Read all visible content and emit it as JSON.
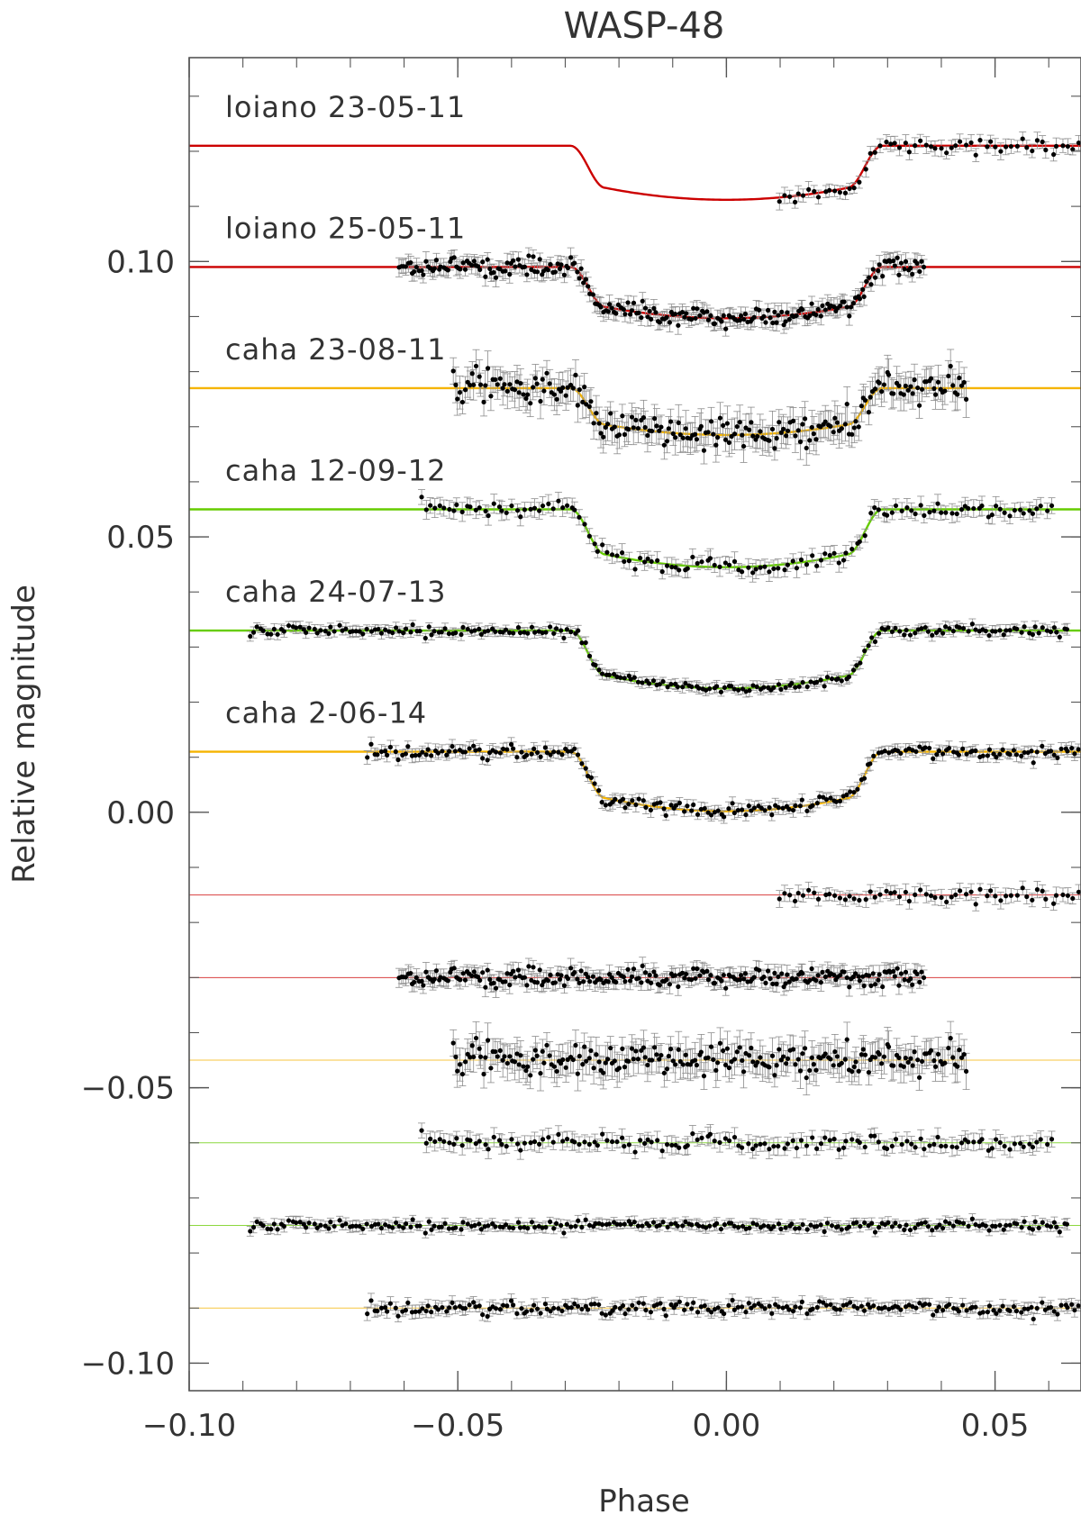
{
  "chart_data": {
    "type": "scatter",
    "title": "WASP-48",
    "xlabel": "Phase",
    "ylabel": "Relative magnitude",
    "xlim": [
      -0.1,
      0.066
    ],
    "ylim": [
      -0.105,
      0.137
    ],
    "reversed_y": false,
    "grid": false,
    "x_ticks": [
      -0.1,
      -0.05,
      0.0,
      0.05
    ],
    "x_tick_labels": [
      "−0.10",
      "−0.05",
      "0.00",
      "0.05"
    ],
    "y_ticks": [
      0.1,
      0.05,
      0.0,
      -0.05,
      -0.1
    ],
    "y_tick_labels": [
      "0.10",
      "0.05",
      "0.00",
      "−0.05",
      "−0.10"
    ],
    "transit_model": {
      "half_duration": 0.029,
      "ingress_duration": 0.0065,
      "center": 0.0
    },
    "series": [
      {
        "name": "loiano 23-05-11",
        "color": "#cc0000",
        "baseline": 0.121,
        "depth": 0.0098,
        "x_range": [
          0.0095,
          0.066
        ],
        "npoints": 60,
        "scatter": 0.0007,
        "resid_offset": -0.015
      },
      {
        "name": "loiano 25-05-11",
        "color": "#cc0000",
        "baseline": 0.099,
        "depth": 0.0093,
        "x_range": [
          -0.061,
          0.037
        ],
        "npoints": 240,
        "scatter": 0.0008,
        "resid_offset": -0.03
      },
      {
        "name": "caha 23-08-11",
        "color": "#f5b400",
        "baseline": 0.077,
        "depth": 0.0085,
        "x_range": [
          -0.051,
          0.045
        ],
        "npoints": 220,
        "scatter": 0.0015,
        "resid_offset": -0.045
      },
      {
        "name": "caha 12-09-12",
        "color": "#66cc00",
        "baseline": 0.055,
        "depth": 0.0105,
        "x_range": [
          -0.057,
          0.061
        ],
        "npoints": 140,
        "scatter": 0.0008,
        "resid_offset": -0.06
      },
      {
        "name": "caha 24-07-13",
        "color": "#66cc00",
        "baseline": 0.033,
        "depth": 0.0105,
        "x_range": [
          -0.089,
          0.064
        ],
        "npoints": 230,
        "scatter": 0.0005,
        "resid_offset": -0.075
      },
      {
        "name": "caha 2-06-14",
        "color": "#f5b400",
        "baseline": 0.011,
        "depth": 0.0108,
        "x_range": [
          -0.067,
          0.066
        ],
        "npoints": 210,
        "scatter": 0.0006,
        "resid_offset": -0.09
      }
    ]
  }
}
